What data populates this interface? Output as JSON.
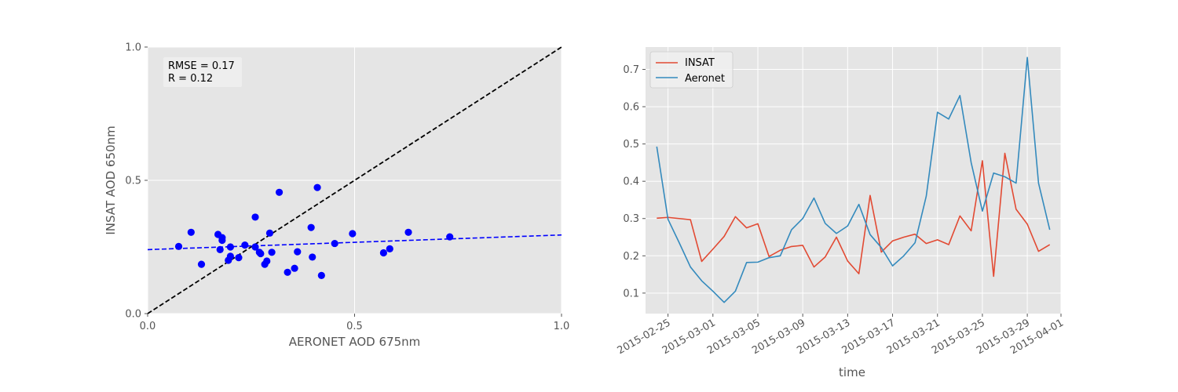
{
  "chart_data": [
    {
      "type": "scatter",
      "xlabel": "AERONET AOD 675nm",
      "ylabel": "INSAT AOD 650nm",
      "xlim": [
        0.0,
        1.0
      ],
      "ylim": [
        0.0,
        1.0
      ],
      "xticks": [
        0.0,
        0.5,
        1.0
      ],
      "yticks": [
        0.0,
        0.5,
        1.0
      ],
      "xtick_labels": [
        "0.0",
        "0.5",
        "1.0"
      ],
      "ytick_labels": [
        "0.0",
        "0.5",
        "1.0"
      ],
      "grid": true,
      "stats": {
        "rmse_label": "RMSE = 0.17",
        "r_label": "R = 0.12"
      },
      "point_color": "#0000ff",
      "identity_line": {
        "slope": 1.0,
        "intercept": 0.0,
        "color": "#000000",
        "style": "dashed"
      },
      "fit_line": {
        "slope": 0.055,
        "intercept": 0.24,
        "color": "#0000ff",
        "style": "dashed"
      },
      "points": [
        {
          "x": 0.075,
          "y": 0.252
        },
        {
          "x": 0.105,
          "y": 0.305
        },
        {
          "x": 0.13,
          "y": 0.185
        },
        {
          "x": 0.17,
          "y": 0.297
        },
        {
          "x": 0.175,
          "y": 0.24
        },
        {
          "x": 0.18,
          "y": 0.285
        },
        {
          "x": 0.18,
          "y": 0.275
        },
        {
          "x": 0.195,
          "y": 0.2
        },
        {
          "x": 0.2,
          "y": 0.25
        },
        {
          "x": 0.2,
          "y": 0.215
        },
        {
          "x": 0.22,
          "y": 0.21
        },
        {
          "x": 0.235,
          "y": 0.257
        },
        {
          "x": 0.26,
          "y": 0.25
        },
        {
          "x": 0.26,
          "y": 0.362
        },
        {
          "x": 0.27,
          "y": 0.23
        },
        {
          "x": 0.273,
          "y": 0.225
        },
        {
          "x": 0.283,
          "y": 0.185
        },
        {
          "x": 0.288,
          "y": 0.197
        },
        {
          "x": 0.295,
          "y": 0.302
        },
        {
          "x": 0.3,
          "y": 0.23
        },
        {
          "x": 0.318,
          "y": 0.455
        },
        {
          "x": 0.338,
          "y": 0.155
        },
        {
          "x": 0.355,
          "y": 0.17
        },
        {
          "x": 0.362,
          "y": 0.232
        },
        {
          "x": 0.395,
          "y": 0.323
        },
        {
          "x": 0.398,
          "y": 0.212
        },
        {
          "x": 0.41,
          "y": 0.473
        },
        {
          "x": 0.42,
          "y": 0.143
        },
        {
          "x": 0.452,
          "y": 0.263
        },
        {
          "x": 0.495,
          "y": 0.3
        },
        {
          "x": 0.57,
          "y": 0.228
        },
        {
          "x": 0.585,
          "y": 0.243
        },
        {
          "x": 0.63,
          "y": 0.305
        },
        {
          "x": 0.73,
          "y": 0.288
        }
      ]
    },
    {
      "type": "line",
      "xlabel": "time",
      "ylabel": "",
      "xlim": [
        "2015-02-23",
        "2015-04-01"
      ],
      "ylim": [
        0.045,
        0.76
      ],
      "yticks": [
        0.1,
        0.2,
        0.3,
        0.4,
        0.5,
        0.6,
        0.7
      ],
      "ytick_labels": [
        "0.1",
        "0.2",
        "0.3",
        "0.4",
        "0.5",
        "0.6",
        "0.7"
      ],
      "xticks": [
        "2015-02-25",
        "2015-03-01",
        "2015-03-05",
        "2015-03-09",
        "2015-03-13",
        "2015-03-17",
        "2015-03-21",
        "2015-03-25",
        "2015-03-29",
        "2015-04-01"
      ],
      "grid": true,
      "legend": "top-left",
      "x": [
        "2015-02-24",
        "2015-02-25",
        "2015-02-26",
        "2015-02-27",
        "2015-02-28",
        "2015-03-01",
        "2015-03-02",
        "2015-03-03",
        "2015-03-04",
        "2015-03-05",
        "2015-03-06",
        "2015-03-07",
        "2015-03-08",
        "2015-03-09",
        "2015-03-10",
        "2015-03-11",
        "2015-03-12",
        "2015-03-13",
        "2015-03-14",
        "2015-03-15",
        "2015-03-16",
        "2015-03-17",
        "2015-03-18",
        "2015-03-19",
        "2015-03-20",
        "2015-03-21",
        "2015-03-22",
        "2015-03-23",
        "2015-03-24",
        "2015-03-25",
        "2015-03-26",
        "2015-03-27",
        "2015-03-28",
        "2015-03-29",
        "2015-03-30",
        "2015-03-31"
      ],
      "series": [
        {
          "name": "INSAT",
          "color": "#e24a33",
          "values": [
            0.301,
            0.303,
            0.3,
            0.297,
            0.185,
            0.218,
            0.252,
            0.305,
            0.275,
            0.286,
            0.198,
            0.215,
            0.225,
            0.228,
            0.17,
            0.197,
            0.25,
            0.186,
            0.152,
            0.362,
            0.21,
            0.24,
            0.25,
            0.258,
            0.233,
            0.243,
            0.23,
            0.307,
            0.267,
            0.455,
            0.145,
            0.475,
            0.325,
            0.285,
            0.212,
            0.23
          ]
        },
        {
          "name": "Aeronet",
          "color": "#348abd",
          "values": [
            0.493,
            0.298,
            0.235,
            0.17,
            0.133,
            0.105,
            0.075,
            0.105,
            0.182,
            0.183,
            0.195,
            0.2,
            0.27,
            0.3,
            0.355,
            0.287,
            0.26,
            0.28,
            0.338,
            0.257,
            0.222,
            0.173,
            0.2,
            0.235,
            0.36,
            0.585,
            0.567,
            0.63,
            0.45,
            0.32,
            0.422,
            0.412,
            0.395,
            0.732,
            0.395,
            0.27
          ]
        }
      ]
    }
  ]
}
